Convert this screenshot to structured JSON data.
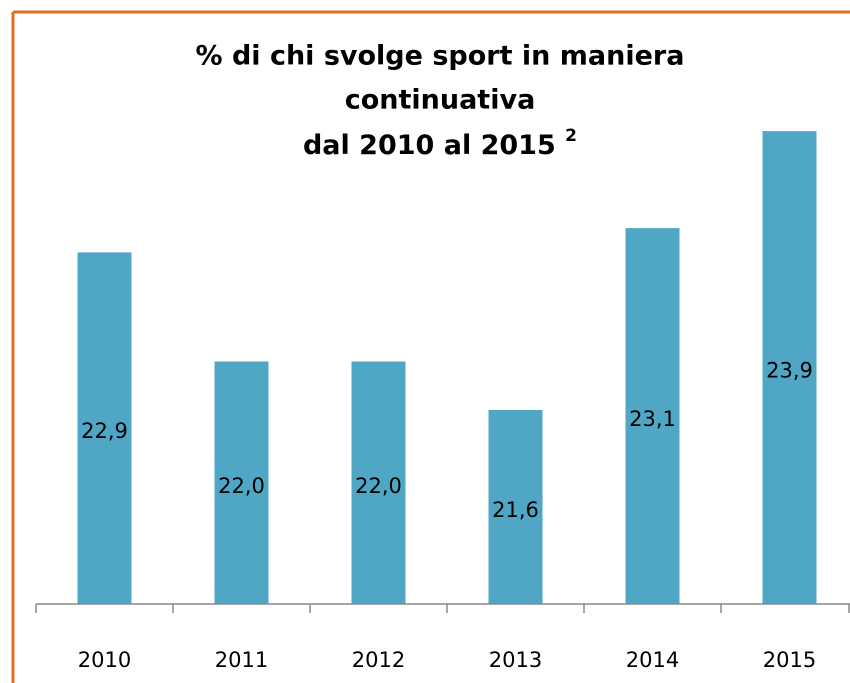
{
  "chart_data": {
    "type": "bar",
    "title": [
      "% di chi svolge sport in maniera",
      "continuativa",
      "dal 2010 al 2015"
    ],
    "title_superscript": "2",
    "categories": [
      "2010",
      "2011",
      "2012",
      "2013",
      "2014",
      "2015"
    ],
    "values": [
      22.9,
      22.0,
      22.0,
      21.6,
      23.1,
      23.9
    ],
    "value_labels": [
      "22,9",
      "22,0",
      "22,0",
      "21,6",
      "23,1",
      "23,9"
    ],
    "color": "#4fa7c5",
    "ylim": [
      20,
      24
    ]
  }
}
